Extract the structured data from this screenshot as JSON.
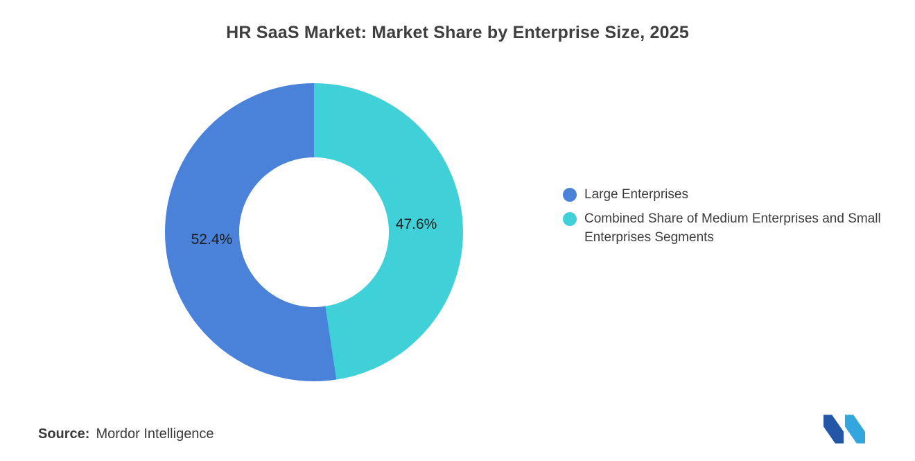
{
  "title": "HR SaaS Market: Market Share by Enterprise Size, 2025",
  "source": {
    "label": "Source:",
    "value": "Mordor Intelligence"
  },
  "legend": {
    "items": [
      {
        "label": "Large Enterprises",
        "color": "#4a81d9"
      },
      {
        "label": "Combined Share of Medium Enterprises and Small Enterprises Segments",
        "color": "#40d0d8"
      }
    ]
  },
  "chart_data": {
    "type": "pie",
    "subtype": "donut",
    "title": "HR SaaS Market: Market Share by Enterprise Size, 2025",
    "categories": [
      "Large Enterprises",
      "Combined Share of Medium Enterprises and Small Enterprises Segments"
    ],
    "values": [
      52.4,
      47.6
    ],
    "labels": [
      "52.4%",
      "47.6%"
    ],
    "colors": [
      "#4a81d9",
      "#40d0d8"
    ],
    "draw_order": [
      1,
      0
    ],
    "start_angle_deg": 0,
    "direction": "clockwise",
    "legend_position": "right",
    "grid": false
  },
  "logo": {
    "name": "mordor-intelligence-logo",
    "colors": [
      "#2456a8",
      "#33a7dd"
    ]
  }
}
